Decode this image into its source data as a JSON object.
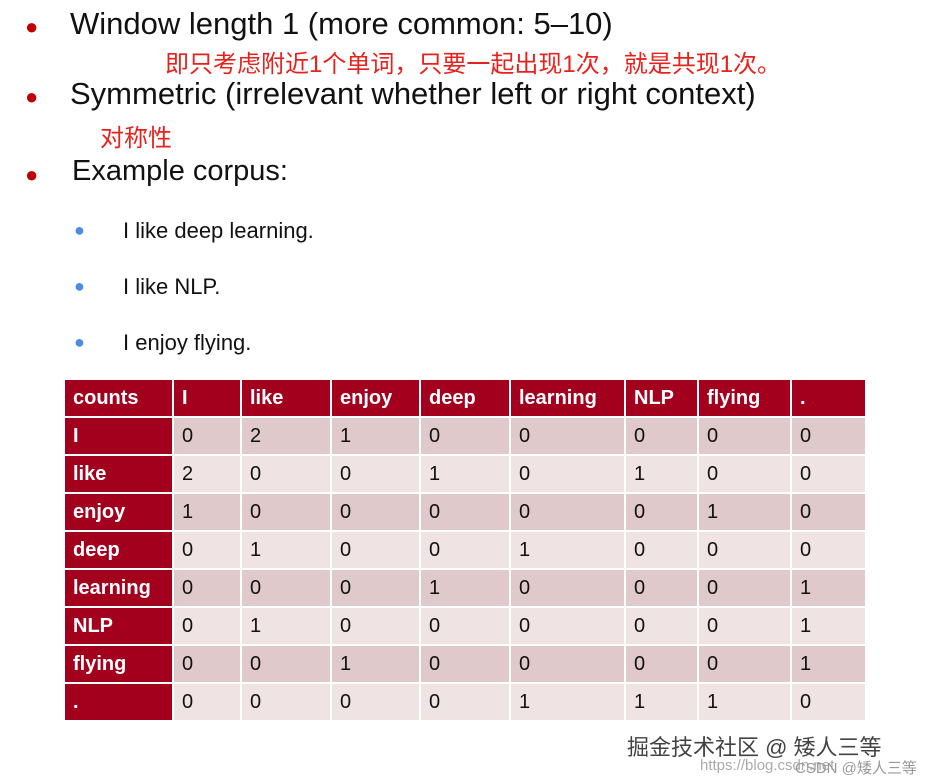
{
  "bullets": [
    {
      "text": "Window length 1 (more common: 5–10)",
      "note": "即只考虑附近1个单词，只要一起出现1次，就是共现1次。"
    },
    {
      "text": "Symmetric (irrelevant whether left or right context)",
      "note": "对称性"
    },
    {
      "text": "Example corpus:"
    }
  ],
  "corpus": [
    "I like deep learning.",
    "I like NLP.",
    "I enjoy flying."
  ],
  "table": {
    "header": [
      "counts",
      "I",
      "like",
      "enjoy",
      "deep",
      "learning",
      "NLP",
      "flying",
      "."
    ],
    "rows": [
      [
        "I",
        "0",
        "2",
        "1",
        "0",
        "0",
        "0",
        "0",
        "0"
      ],
      [
        "like",
        "2",
        "0",
        "0",
        "1",
        "0",
        "1",
        "0",
        "0"
      ],
      [
        "enjoy",
        "1",
        "0",
        "0",
        "0",
        "0",
        "0",
        "1",
        "0"
      ],
      [
        "deep",
        "0",
        "1",
        "0",
        "0",
        "1",
        "0",
        "0",
        "0"
      ],
      [
        "learning",
        "0",
        "0",
        "0",
        "1",
        "0",
        "0",
        "0",
        "1"
      ],
      [
        "NLP",
        "0",
        "1",
        "0",
        "0",
        "0",
        "0",
        "0",
        "1"
      ],
      [
        "flying",
        "0",
        "0",
        "1",
        "0",
        "0",
        "0",
        "0",
        "1"
      ],
      [
        ".",
        "0",
        "0",
        "0",
        "0",
        "1",
        "1",
        "1",
        "0"
      ]
    ]
  },
  "watermark": {
    "main": "掘金技术社区 @ 矮人三等",
    "url": "https://blog.csdn.net",
    "csdn": "CSDN @矮人三等"
  },
  "colors": {
    "header": "#a3001e",
    "note": "#e8211c",
    "bullet": "#c00000"
  }
}
